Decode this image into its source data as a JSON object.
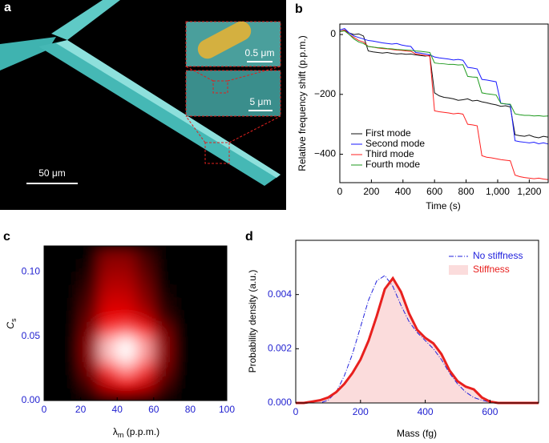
{
  "image_panel": {
    "label": "a",
    "scale_bars": [
      "0.5 μm",
      "5 μm",
      "50 μm"
    ]
  },
  "chart_data": [
    {
      "type": "line",
      "panel_label": "b",
      "xlabel": "Time (s)",
      "ylabel": "Relative frequency shift (p.p.m.)",
      "x": [
        0,
        30,
        60,
        90,
        120,
        150,
        180,
        210,
        240,
        270,
        300,
        330,
        360,
        390,
        420,
        450,
        480,
        510,
        540,
        570,
        600,
        630,
        660,
        690,
        720,
        750,
        780,
        810,
        840,
        870,
        900,
        930,
        960,
        990,
        1020,
        1050,
        1080,
        1110,
        1140,
        1170,
        1200,
        1230,
        1260,
        1290,
        1320
      ],
      "series": [
        {
          "name": "First mode",
          "color": "#111111",
          "values": [
            10,
            15,
            5,
            0,
            2,
            -5,
            -55,
            -58,
            -60,
            -62,
            -60,
            -63,
            -65,
            -64,
            -66,
            -65,
            -68,
            -70,
            -72,
            -70,
            -195,
            -205,
            -210,
            -212,
            -215,
            -220,
            -218,
            -215,
            -222,
            -220,
            -225,
            -228,
            -232,
            -235,
            -240,
            -238,
            -242,
            -335,
            -338,
            -340,
            -336,
            -342,
            -345,
            -340,
            -343
          ]
        },
        {
          "name": "Second mode",
          "color": "#1a1aff",
          "values": [
            15,
            20,
            5,
            -5,
            -10,
            -15,
            -20,
            -22,
            -25,
            -28,
            -30,
            -32,
            -30,
            -35,
            -38,
            -40,
            -60,
            -62,
            -65,
            -68,
            -75,
            -78,
            -80,
            -82,
            -85,
            -83,
            -86,
            -110,
            -112,
            -115,
            -150,
            -152,
            -155,
            -158,
            -230,
            -232,
            -235,
            -355,
            -358,
            -360,
            -362,
            -360,
            -365,
            -362,
            -366
          ]
        },
        {
          "name": "Third mode",
          "color": "#ff2020",
          "values": [
            10,
            15,
            0,
            -10,
            -20,
            -25,
            -40,
            -42,
            -45,
            -47,
            -48,
            -50,
            -52,
            -53,
            -55,
            -56,
            -65,
            -67,
            -70,
            -72,
            -255,
            -258,
            -260,
            -262,
            -265,
            -263,
            -266,
            -300,
            -302,
            -305,
            -405,
            -410,
            -412,
            -415,
            -418,
            -420,
            -422,
            -470,
            -475,
            -478,
            -480,
            -482,
            -480,
            -483,
            -485
          ]
        },
        {
          "name": "Fourth mode",
          "color": "#1f9a1f",
          "values": [
            10,
            12,
            0,
            -15,
            -25,
            -30,
            -40,
            -42,
            -44,
            -45,
            -47,
            -48,
            -50,
            -51,
            -52,
            -53,
            -55,
            -56,
            -58,
            -60,
            -95,
            -97,
            -98,
            -100,
            -100,
            -102,
            -101,
            -140,
            -142,
            -143,
            -195,
            -198,
            -200,
            -202,
            -230,
            -232,
            -233,
            -265,
            -268,
            -270,
            -270,
            -272,
            -271,
            -273,
            -272
          ]
        }
      ],
      "xlim": [
        0,
        1320
      ],
      "ylim": [
        -495,
        35
      ],
      "xticks": [
        0,
        200,
        400,
        600,
        800,
        {
          "value": 1000,
          "label": "1,000"
        },
        {
          "value": 1200,
          "label": "1,200"
        }
      ],
      "yticks": [
        {
          "value": -400,
          "label": "−400"
        },
        {
          "value": -200,
          "label": "−200"
        },
        0
      ],
      "legend": "lower left",
      "tick_label_color": "#000000"
    },
    {
      "type": "heatmap",
      "panel_label": "c",
      "xlabel": [
        "λ",
        "m",
        " (p.p.m.)"
      ],
      "ylabel": [
        "C",
        "s"
      ],
      "x": [
        5,
        15,
        25,
        35,
        45,
        55,
        65,
        75,
        85,
        95
      ],
      "y": [
        0.005,
        0.015,
        0.025,
        0.035,
        0.045,
        0.055,
        0.065,
        0.075,
        0.085,
        0.095,
        0.105,
        0.115
      ],
      "z": [
        [
          0,
          0,
          0.1,
          0.3,
          0.35,
          0.3,
          0.1,
          0,
          0,
          0
        ],
        [
          0,
          0,
          0.2,
          0.5,
          0.6,
          0.5,
          0.2,
          0,
          0,
          0
        ],
        [
          0,
          0,
          0.3,
          0.7,
          0.85,
          0.7,
          0.3,
          0,
          0,
          0
        ],
        [
          0,
          0,
          0.35,
          0.9,
          1,
          0.85,
          0.35,
          0,
          0,
          0
        ],
        [
          0,
          0,
          0.35,
          0.9,
          1,
          0.85,
          0.35,
          0,
          0,
          0
        ],
        [
          0,
          0,
          0.3,
          0.7,
          0.75,
          0.65,
          0.3,
          0,
          0,
          0
        ],
        [
          0,
          0,
          0.25,
          0.55,
          0.55,
          0.45,
          0.15,
          0,
          0,
          0
        ],
        [
          0,
          0,
          0.2,
          0.5,
          0.5,
          0.35,
          0.1,
          0,
          0,
          0
        ],
        [
          0,
          0,
          0.15,
          0.45,
          0.45,
          0.3,
          0.05,
          0,
          0,
          0
        ],
        [
          0,
          0,
          0.1,
          0.4,
          0.4,
          0.25,
          0,
          0,
          0,
          0
        ],
        [
          0,
          0,
          0.05,
          0.35,
          0.35,
          0.2,
          0,
          0,
          0,
          0
        ],
        [
          0,
          0,
          0,
          0.3,
          0.3,
          0.15,
          0,
          0,
          0,
          0
        ]
      ],
      "xlim": [
        0,
        100
      ],
      "ylim": [
        0,
        0.12
      ],
      "xticks": [
        0,
        20,
        40,
        60,
        80,
        100
      ],
      "yticks": [
        {
          "value": 0,
          "label": "0.00"
        },
        {
          "value": 0.05,
          "label": "0.05"
        },
        {
          "value": 0.1,
          "label": "0.10"
        }
      ],
      "tick_label_color": "#1f1fd0"
    },
    {
      "type": "area-line",
      "panel_label": "d",
      "xlabel": "Mass (fg)",
      "ylabel": "Probability density (a.u.)",
      "x": [
        0,
        25,
        50,
        75,
        100,
        125,
        150,
        175,
        200,
        225,
        250,
        275,
        300,
        325,
        350,
        375,
        400,
        425,
        450,
        475,
        500,
        525,
        550,
        575,
        600,
        625,
        650,
        675,
        700,
        725,
        750
      ],
      "series": [
        {
          "name": "No stiffness",
          "color": "#2222dd",
          "style": "dash-dot",
          "values": [
            0,
            0,
            0,
            0,
            0.0001,
            0.0004,
            0.001,
            0.0018,
            0.0028,
            0.0038,
            0.0045,
            0.0047,
            0.0043,
            0.0036,
            0.003,
            0.0026,
            0.0023,
            0.002,
            0.0016,
            0.0011,
            0.0007,
            0.0004,
            0.0002,
            0.0001,
            3e-05,
            0,
            0,
            0,
            0,
            0,
            0
          ]
        },
        {
          "name": "Stiffness",
          "color": "#e8201e",
          "fill": "#fbdcdc",
          "values": [
            0,
            0,
            5e-05,
            0.0001,
            0.0002,
            0.0004,
            0.0007,
            0.0011,
            0.0016,
            0.0023,
            0.0032,
            0.0042,
            0.0046,
            0.0041,
            0.0033,
            0.0027,
            0.0024,
            0.0022,
            0.0018,
            0.0012,
            0.0008,
            0.0006,
            0.0005,
            0.0002,
            5e-05,
            0,
            0,
            0,
            0,
            0,
            0
          ]
        }
      ],
      "xlim": [
        0,
        750
      ],
      "ylim": [
        0,
        0.006
      ],
      "xticks": [
        0,
        200,
        400,
        600
      ],
      "yticks": [
        {
          "value": 0,
          "label": "0.000"
        },
        {
          "value": 0.002,
          "label": "0.002"
        },
        {
          "value": 0.004,
          "label": "0.004"
        }
      ],
      "legend": "upper right",
      "tick_label_color": "#1f1fd0"
    }
  ]
}
